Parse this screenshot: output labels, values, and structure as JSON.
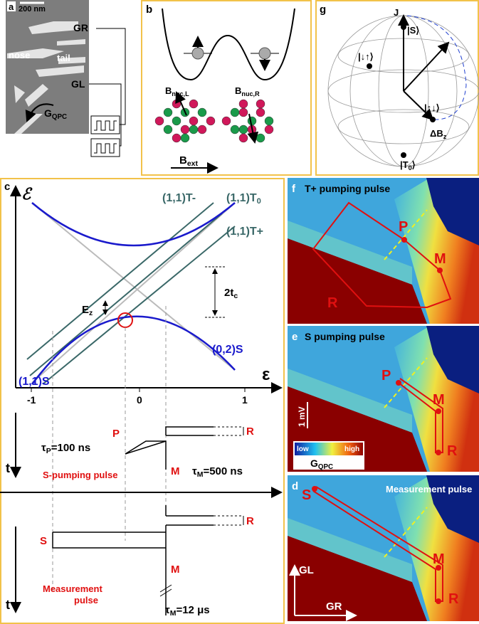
{
  "panel_a": {
    "label": "a",
    "scale": "200 nm",
    "gate_right": "GR",
    "gate_left": "GL",
    "nose": "nose",
    "tail": "tail",
    "current": {
      "pre": "G",
      "sub": "QPC"
    }
  },
  "panel_b": {
    "label": "b",
    "field_left": {
      "pre": "B",
      "sub": "nuc,L"
    },
    "field_right": {
      "pre": "B",
      "sub": "nuc,R"
    },
    "field_ext": {
      "pre": "B",
      "sub": "ext"
    }
  },
  "panel_c": {
    "label": "c",
    "y_axis": "ℰ",
    "x_axis": "ε",
    "x_ticks": [
      "-1",
      "0",
      "1"
    ],
    "state_t_minus": "(1,1)T-",
    "state_t0": {
      "pre": "(1,1)T",
      "sub": "0"
    },
    "state_t_plus": "(1,1)T+",
    "state_02s": "(0,2)S",
    "state_11s": "(1,1)S",
    "zeeman": {
      "pre": "E",
      "sub": "z"
    },
    "tunnel": {
      "pre": "2t",
      "sub": "c"
    },
    "s_pumping": {
      "tau_p": {
        "pre": "τ",
        "sub": "P",
        "post": "=100 ns"
      },
      "p": "P",
      "r": "R",
      "m": "M",
      "tau_m": {
        "pre": "τ",
        "sub": "M",
        "post": "=500 ns"
      },
      "title": "S-pumping pulse",
      "t": "t"
    },
    "measurement": {
      "s": "S",
      "r": "R",
      "m": "M",
      "tau_m": {
        "pre": "τ",
        "sub": "M",
        "post": "=12 μs"
      },
      "title": [
        "Measurement",
        "pulse"
      ],
      "t": "t"
    }
  },
  "panel_g": {
    "label": "g",
    "j": "J",
    "singlet": "|S⟩",
    "down_up": "|↓↑⟩",
    "up_down": "|↑↓⟩",
    "t0": {
      "pre": "|T",
      "sub": "0",
      "post": "⟩"
    },
    "delta_b": {
      "pre": "ΔB",
      "sub": "z"
    }
  },
  "panel_f": {
    "label": "f",
    "title": "T+ pumping pulse",
    "p": "P",
    "m": "M",
    "r": "R"
  },
  "panel_e": {
    "label": "e",
    "title": "S pumping pulse",
    "p": "P",
    "m": "M",
    "r": "R",
    "scale": "1 mV",
    "low": "low",
    "high": "high",
    "colorbar": {
      "pre": "G",
      "sub": "QPC"
    }
  },
  "panel_d": {
    "label": "d",
    "title": "Measurement pulse",
    "s": "S",
    "m": "M",
    "r": "R",
    "y_axis": "GL",
    "x_axis": "GR"
  }
}
